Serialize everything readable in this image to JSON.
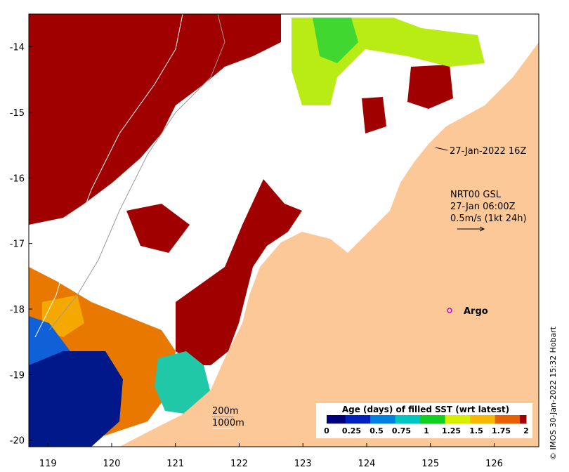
{
  "map": {
    "x_axis": {
      "ticks": [
        "119",
        "120",
        "121",
        "122",
        "123",
        "124",
        "125",
        "126"
      ],
      "range": [
        118.7,
        126.7
      ]
    },
    "y_axis": {
      "ticks": [
        "-14",
        "-15",
        "-16",
        "-17",
        "-18",
        "-19",
        "-20"
      ],
      "range": [
        -20.1,
        -13.5
      ]
    },
    "colors": {
      "land": "#fdc897",
      "cloud_gap": "#ffffff",
      "age_2": "#a00000",
      "age_1_75": "#c83a00",
      "age_1_5": "#e87800",
      "age_1_25": "#f5a800",
      "age_1": "#b8ec14",
      "age_0_75": "#40d830",
      "age_0_5": "#20c8a8",
      "age_0_25": "#1060d8",
      "age_0": "#00188a"
    }
  },
  "annotations": {
    "obs_time": "27-Jan-2022 16Z",
    "current_line1": "NRT00 GSL",
    "current_line2": "27-Jan 06:00Z",
    "current_line3": "0.5m/s (1kt 24h)",
    "argo_label": "Argo",
    "contour_200": "200m",
    "contour_1000": "1000m"
  },
  "colorbar": {
    "title": "Age (days) of filled SST (wrt latest)",
    "ticks": [
      "0",
      "0.25",
      "0.5",
      "0.75",
      "1",
      "1.25",
      "1.5",
      "1.75",
      "2"
    ],
    "stops": [
      "#00007a",
      "#0020c0",
      "#0080e0",
      "#00c8c0",
      "#10d020",
      "#d8f000",
      "#f8b800",
      "#e86000",
      "#a00000"
    ]
  },
  "credit": "© IMOS 30-Jan-2022 15:32 Hobart"
}
